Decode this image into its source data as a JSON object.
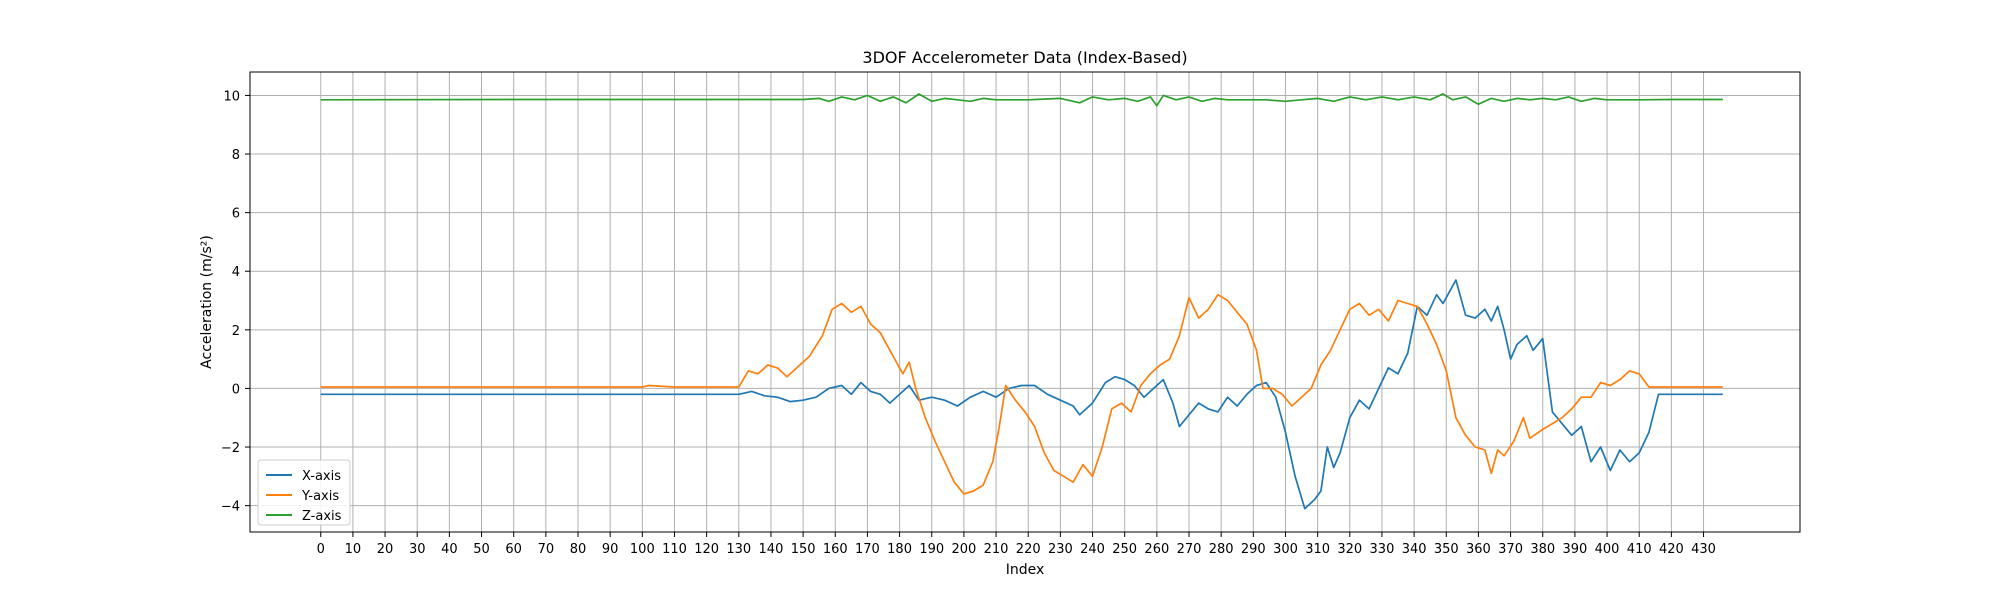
{
  "chart_data": {
    "type": "line",
    "title": "3DOF Accelerometer Data (Index-Based)",
    "xlabel": "Index",
    "ylabel": "Acceleration (m/s²)",
    "xlim": [
      -22,
      460
    ],
    "ylim": [
      -4.9,
      10.8
    ],
    "xticks": [
      0,
      10,
      20,
      30,
      40,
      50,
      60,
      70,
      80,
      90,
      100,
      110,
      120,
      130,
      140,
      150,
      160,
      170,
      180,
      190,
      200,
      210,
      220,
      230,
      240,
      250,
      260,
      270,
      280,
      290,
      300,
      310,
      320,
      330,
      340,
      350,
      360,
      370,
      380,
      390,
      400,
      410,
      420,
      430
    ],
    "yticks": [
      -4,
      -2,
      0,
      2,
      4,
      6,
      8,
      10
    ],
    "grid": true,
    "legend_position": "lower-left",
    "series": [
      {
        "name": "X-axis",
        "color": "#1f77b4",
        "points": [
          [
            0,
            -0.2
          ],
          [
            20,
            -0.2
          ],
          [
            60,
            -0.2
          ],
          [
            100,
            -0.2
          ],
          [
            130,
            -0.2
          ],
          [
            134,
            -0.1
          ],
          [
            138,
            -0.25
          ],
          [
            142,
            -0.3
          ],
          [
            146,
            -0.45
          ],
          [
            150,
            -0.4
          ],
          [
            154,
            -0.3
          ],
          [
            158,
            0.0
          ],
          [
            162,
            0.1
          ],
          [
            165,
            -0.2
          ],
          [
            168,
            0.2
          ],
          [
            171,
            -0.1
          ],
          [
            174,
            -0.2
          ],
          [
            177,
            -0.5
          ],
          [
            180,
            -0.2
          ],
          [
            183,
            0.1
          ],
          [
            186,
            -0.4
          ],
          [
            190,
            -0.3
          ],
          [
            194,
            -0.4
          ],
          [
            198,
            -0.6
          ],
          [
            202,
            -0.3
          ],
          [
            206,
            -0.1
          ],
          [
            210,
            -0.3
          ],
          [
            214,
            0.0
          ],
          [
            218,
            0.1
          ],
          [
            222,
            0.1
          ],
          [
            226,
            -0.2
          ],
          [
            230,
            -0.4
          ],
          [
            234,
            -0.6
          ],
          [
            236,
            -0.9
          ],
          [
            240,
            -0.5
          ],
          [
            244,
            0.2
          ],
          [
            247,
            0.4
          ],
          [
            250,
            0.3
          ],
          [
            253,
            0.1
          ],
          [
            256,
            -0.3
          ],
          [
            259,
            0.0
          ],
          [
            262,
            0.3
          ],
          [
            265,
            -0.5
          ],
          [
            267,
            -1.3
          ],
          [
            270,
            -0.9
          ],
          [
            273,
            -0.5
          ],
          [
            276,
            -0.7
          ],
          [
            279,
            -0.8
          ],
          [
            282,
            -0.3
          ],
          [
            285,
            -0.6
          ],
          [
            288,
            -0.2
          ],
          [
            291,
            0.1
          ],
          [
            294,
            0.2
          ],
          [
            297,
            -0.3
          ],
          [
            300,
            -1.5
          ],
          [
            303,
            -3.0
          ],
          [
            306,
            -4.1
          ],
          [
            309,
            -3.8
          ],
          [
            311,
            -3.5
          ],
          [
            313,
            -2.0
          ],
          [
            315,
            -2.7
          ],
          [
            317,
            -2.2
          ],
          [
            320,
            -1.0
          ],
          [
            323,
            -0.4
          ],
          [
            326,
            -0.7
          ],
          [
            329,
            0.0
          ],
          [
            332,
            0.7
          ],
          [
            335,
            0.5
          ],
          [
            338,
            1.2
          ],
          [
            341,
            2.8
          ],
          [
            344,
            2.5
          ],
          [
            347,
            3.2
          ],
          [
            349,
            2.9
          ],
          [
            351,
            3.3
          ],
          [
            353,
            3.7
          ],
          [
            356,
            2.5
          ],
          [
            359,
            2.4
          ],
          [
            362,
            2.7
          ],
          [
            364,
            2.3
          ],
          [
            366,
            2.8
          ],
          [
            368,
            2.0
          ],
          [
            370,
            1.0
          ],
          [
            372,
            1.5
          ],
          [
            375,
            1.8
          ],
          [
            377,
            1.3
          ],
          [
            380,
            1.7
          ],
          [
            383,
            -0.8
          ],
          [
            386,
            -1.2
          ],
          [
            389,
            -1.6
          ],
          [
            392,
            -1.3
          ],
          [
            395,
            -2.5
          ],
          [
            398,
            -2.0
          ],
          [
            401,
            -2.8
          ],
          [
            404,
            -2.1
          ],
          [
            407,
            -2.5
          ],
          [
            410,
            -2.2
          ],
          [
            413,
            -1.5
          ],
          [
            416,
            -0.2
          ],
          [
            420,
            -0.2
          ],
          [
            425,
            -0.2
          ],
          [
            430,
            -0.2
          ],
          [
            436,
            -0.2
          ]
        ]
      },
      {
        "name": "Y-axis",
        "color": "#ff7f0e",
        "points": [
          [
            0,
            0.05
          ],
          [
            50,
            0.05
          ],
          [
            100,
            0.05
          ],
          [
            102,
            0.1
          ],
          [
            110,
            0.05
          ],
          [
            130,
            0.05
          ],
          [
            133,
            0.6
          ],
          [
            136,
            0.5
          ],
          [
            139,
            0.8
          ],
          [
            142,
            0.7
          ],
          [
            145,
            0.4
          ],
          [
            148,
            0.7
          ],
          [
            152,
            1.1
          ],
          [
            156,
            1.8
          ],
          [
            159,
            2.7
          ],
          [
            162,
            2.9
          ],
          [
            165,
            2.6
          ],
          [
            168,
            2.8
          ],
          [
            171,
            2.2
          ],
          [
            174,
            1.9
          ],
          [
            177,
            1.3
          ],
          [
            179,
            0.9
          ],
          [
            181,
            0.5
          ],
          [
            183,
            0.9
          ],
          [
            185,
            0.0
          ],
          [
            188,
            -1.0
          ],
          [
            191,
            -1.8
          ],
          [
            194,
            -2.5
          ],
          [
            197,
            -3.2
          ],
          [
            200,
            -3.6
          ],
          [
            203,
            -3.5
          ],
          [
            206,
            -3.3
          ],
          [
            209,
            -2.5
          ],
          [
            211,
            -1.3
          ],
          [
            213,
            0.1
          ],
          [
            216,
            -0.4
          ],
          [
            219,
            -0.8
          ],
          [
            222,
            -1.3
          ],
          [
            225,
            -2.2
          ],
          [
            228,
            -2.8
          ],
          [
            231,
            -3.0
          ],
          [
            234,
            -3.2
          ],
          [
            237,
            -2.6
          ],
          [
            240,
            -3.0
          ],
          [
            243,
            -2.0
          ],
          [
            246,
            -0.7
          ],
          [
            249,
            -0.5
          ],
          [
            252,
            -0.8
          ],
          [
            255,
            0.1
          ],
          [
            258,
            0.5
          ],
          [
            261,
            0.8
          ],
          [
            264,
            1.0
          ],
          [
            267,
            1.8
          ],
          [
            270,
            3.1
          ],
          [
            273,
            2.4
          ],
          [
            276,
            2.7
          ],
          [
            279,
            3.2
          ],
          [
            282,
            3.0
          ],
          [
            285,
            2.6
          ],
          [
            288,
            2.2
          ],
          [
            291,
            1.3
          ],
          [
            293,
            0.0
          ],
          [
            296,
            0.0
          ],
          [
            299,
            -0.2
          ],
          [
            302,
            -0.6
          ],
          [
            305,
            -0.3
          ],
          [
            308,
            0.0
          ],
          [
            311,
            0.8
          ],
          [
            314,
            1.3
          ],
          [
            317,
            2.0
          ],
          [
            320,
            2.7
          ],
          [
            323,
            2.9
          ],
          [
            326,
            2.5
          ],
          [
            329,
            2.7
          ],
          [
            332,
            2.3
          ],
          [
            335,
            3.0
          ],
          [
            338,
            2.9
          ],
          [
            341,
            2.8
          ],
          [
            344,
            2.2
          ],
          [
            347,
            1.5
          ],
          [
            350,
            0.6
          ],
          [
            353,
            -1.0
          ],
          [
            356,
            -1.6
          ],
          [
            359,
            -2.0
          ],
          [
            362,
            -2.1
          ],
          [
            364,
            -2.9
          ],
          [
            366,
            -2.1
          ],
          [
            368,
            -2.3
          ],
          [
            371,
            -1.8
          ],
          [
            374,
            -1.0
          ],
          [
            376,
            -1.7
          ],
          [
            380,
            -1.4
          ],
          [
            383,
            -1.2
          ],
          [
            386,
            -1.0
          ],
          [
            389,
            -0.7
          ],
          [
            392,
            -0.3
          ],
          [
            395,
            -0.3
          ],
          [
            398,
            0.2
          ],
          [
            401,
            0.1
          ],
          [
            404,
            0.3
          ],
          [
            407,
            0.6
          ],
          [
            410,
            0.5
          ],
          [
            413,
            0.05
          ],
          [
            420,
            0.05
          ],
          [
            436,
            0.05
          ]
        ]
      },
      {
        "name": "Z-axis",
        "color": "#2ca02c",
        "points": [
          [
            0,
            9.85
          ],
          [
            60,
            9.86
          ],
          [
            120,
            9.86
          ],
          [
            150,
            9.86
          ],
          [
            155,
            9.9
          ],
          [
            158,
            9.8
          ],
          [
            162,
            9.95
          ],
          [
            166,
            9.85
          ],
          [
            170,
            10.0
          ],
          [
            174,
            9.8
          ],
          [
            178,
            9.95
          ],
          [
            182,
            9.75
          ],
          [
            186,
            10.05
          ],
          [
            190,
            9.8
          ],
          [
            194,
            9.9
          ],
          [
            198,
            9.85
          ],
          [
            202,
            9.8
          ],
          [
            206,
            9.9
          ],
          [
            210,
            9.85
          ],
          [
            220,
            9.85
          ],
          [
            230,
            9.9
          ],
          [
            236,
            9.75
          ],
          [
            240,
            9.95
          ],
          [
            245,
            9.85
          ],
          [
            250,
            9.9
          ],
          [
            254,
            9.8
          ],
          [
            258,
            9.95
          ],
          [
            260,
            9.65
          ],
          [
            262,
            10.0
          ],
          [
            266,
            9.85
          ],
          [
            270,
            9.95
          ],
          [
            274,
            9.8
          ],
          [
            278,
            9.9
          ],
          [
            282,
            9.85
          ],
          [
            288,
            9.85
          ],
          [
            294,
            9.85
          ],
          [
            300,
            9.8
          ],
          [
            305,
            9.85
          ],
          [
            310,
            9.9
          ],
          [
            315,
            9.8
          ],
          [
            320,
            9.95
          ],
          [
            325,
            9.85
          ],
          [
            330,
            9.95
          ],
          [
            335,
            9.85
          ],
          [
            340,
            9.95
          ],
          [
            345,
            9.85
          ],
          [
            349,
            10.05
          ],
          [
            352,
            9.85
          ],
          [
            356,
            9.95
          ],
          [
            360,
            9.7
          ],
          [
            364,
            9.9
          ],
          [
            368,
            9.8
          ],
          [
            372,
            9.9
          ],
          [
            376,
            9.85
          ],
          [
            380,
            9.9
          ],
          [
            384,
            9.85
          ],
          [
            388,
            9.95
          ],
          [
            392,
            9.8
          ],
          [
            396,
            9.9
          ],
          [
            400,
            9.85
          ],
          [
            410,
            9.85
          ],
          [
            420,
            9.86
          ],
          [
            436,
            9.86
          ]
        ]
      }
    ]
  }
}
